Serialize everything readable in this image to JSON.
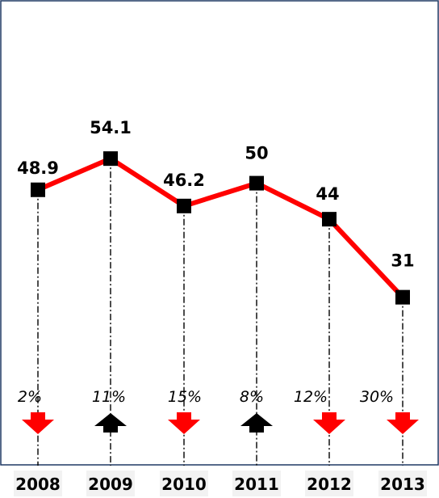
{
  "chart_data": {
    "type": "line",
    "categories": [
      "2008",
      "2009",
      "2010",
      "2011",
      "2012",
      "2013"
    ],
    "values": [
      48.9,
      54.1,
      46.2,
      50,
      44,
      31
    ],
    "value_labels": [
      "48.9",
      "54.1",
      "46.2",
      "50",
      "44",
      "31"
    ],
    "changes": [
      {
        "label": "2%",
        "direction": "down"
      },
      {
        "label": "11%",
        "direction": "up"
      },
      {
        "label": "15%",
        "direction": "down"
      },
      {
        "label": "8%",
        "direction": "up"
      },
      {
        "label": "12%",
        "direction": "down"
      },
      {
        "label": "30%",
        "direction": "down"
      }
    ],
    "ylim": [
      0,
      70
    ],
    "grid": false,
    "legend": "none",
    "colors": {
      "line": "#ff0000",
      "marker": "#000000",
      "arrow_down": "#ff0000",
      "arrow_up": "#000000",
      "frame": "#1f3864",
      "year_bg": "#f2f2f2"
    }
  }
}
